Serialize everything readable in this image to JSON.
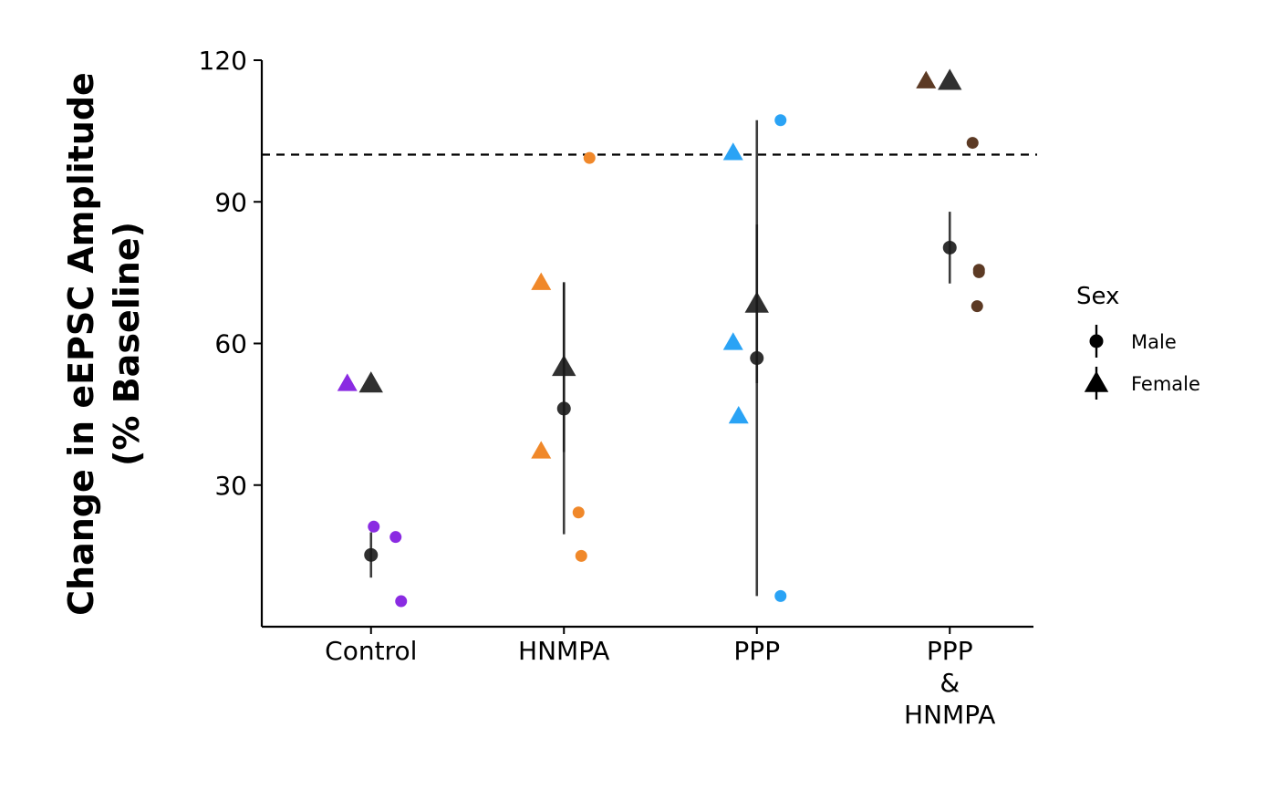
{
  "chart_data": {
    "type": "scatter",
    "ylabel": [
      "Change in eEPSC Amplitude",
      "(% Baseline)"
    ],
    "xlabel": "",
    "ylim": [
      0,
      120
    ],
    "yticks": [
      30,
      60,
      90,
      120
    ],
    "categories": [
      {
        "key": "control",
        "lines": [
          "Control"
        ],
        "color": "#8A2BE2"
      },
      {
        "key": "hnmpa",
        "lines": [
          "HNMPA"
        ],
        "color": "#F0882A"
      },
      {
        "key": "ppp",
        "lines": [
          "PPP"
        ],
        "color": "#2AA3F5"
      },
      {
        "key": "ppp-hnmpa",
        "lines": [
          "PPP",
          "&",
          "HNMPA"
        ],
        "color": "#5C3A24"
      }
    ],
    "reference_line": 100,
    "legend": {
      "title": "Sex",
      "position": "right",
      "entries": [
        {
          "label": "Male",
          "shape": "circle"
        },
        {
          "label": "Female",
          "shape": "triangle"
        }
      ]
    },
    "points": [
      {
        "category": "control",
        "sex": "Female",
        "y": 51.5
      },
      {
        "category": "control",
        "sex": "Male",
        "y": 21.2
      },
      {
        "category": "control",
        "sex": "Male",
        "y": 19.0
      },
      {
        "category": "control",
        "sex": "Male",
        "y": 5.4
      },
      {
        "category": "hnmpa",
        "sex": "Female",
        "y": 72.9
      },
      {
        "category": "hnmpa",
        "sex": "Female",
        "y": 37.2
      },
      {
        "category": "hnmpa",
        "sex": "Male",
        "y": 99.3
      },
      {
        "category": "hnmpa",
        "sex": "Male",
        "y": 24.2
      },
      {
        "category": "hnmpa",
        "sex": "Male",
        "y": 15.0
      },
      {
        "category": "ppp",
        "sex": "Female",
        "y": 100.4
      },
      {
        "category": "ppp",
        "sex": "Female",
        "y": 60.2
      },
      {
        "category": "ppp",
        "sex": "Female",
        "y": 44.6
      },
      {
        "category": "ppp",
        "sex": "Male",
        "y": 107.3
      },
      {
        "category": "ppp",
        "sex": "Male",
        "y": 6.5
      },
      {
        "category": "ppp-hnmpa",
        "sex": "Female",
        "y": 115.6
      },
      {
        "category": "ppp-hnmpa",
        "sex": "Male",
        "y": 102.5
      },
      {
        "category": "ppp-hnmpa",
        "sex": "Male",
        "y": 75.6
      },
      {
        "category": "ppp-hnmpa",
        "sex": "Male",
        "y": 75.1
      },
      {
        "category": "ppp-hnmpa",
        "sex": "Male",
        "y": 67.9
      }
    ],
    "summary": [
      {
        "category": "control",
        "sex": "Female",
        "mean": 51.5,
        "low": null,
        "high": null
      },
      {
        "category": "control",
        "sex": "Male",
        "mean": 15.2,
        "low": 10.4,
        "high": 20.0
      },
      {
        "category": "hnmpa",
        "sex": "Female",
        "mean": 55.0,
        "low": 37.0,
        "high": 73.0
      },
      {
        "category": "hnmpa",
        "sex": "Male",
        "mean": 46.2,
        "low": 19.6,
        "high": 72.8
      },
      {
        "category": "ppp",
        "sex": "Female",
        "mean": 68.4,
        "low": 51.6,
        "high": 85.2
      },
      {
        "category": "ppp",
        "sex": "Male",
        "mean": 56.9,
        "low": 6.5,
        "high": 107.3
      },
      {
        "category": "ppp-hnmpa",
        "sex": "Female",
        "mean": 115.6,
        "low": null,
        "high": null
      },
      {
        "category": "ppp-hnmpa",
        "sex": "Male",
        "mean": 80.3,
        "low": 72.7,
        "high": 87.9
      }
    ]
  }
}
